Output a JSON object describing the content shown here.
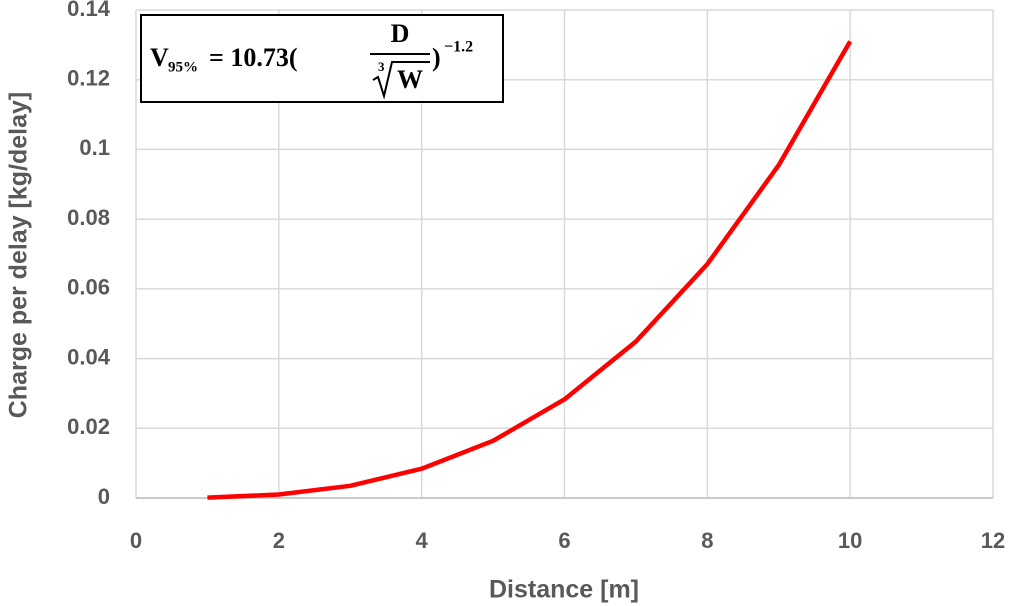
{
  "chart_data": {
    "type": "line",
    "x_label": "Distance [m]",
    "y_label": "Charge per delay [kg/delay]",
    "x": [
      1,
      2,
      3,
      4,
      5,
      6,
      7,
      8,
      9,
      10
    ],
    "series": [
      {
        "name": "Charge per delay",
        "color": "#ff0000",
        "values": [
          0.0001,
          0.001,
          0.0035,
          0.0084,
          0.0164,
          0.0283,
          0.0449,
          0.0671,
          0.0955,
          0.131
        ]
      }
    ],
    "xlim": [
      0,
      12
    ],
    "xticks": [
      0,
      2,
      4,
      6,
      8,
      10,
      12
    ],
    "ylim": [
      0,
      0.14
    ],
    "yticks": [
      0,
      0.02,
      0.04,
      0.06,
      0.08,
      0.1,
      0.12,
      0.14
    ],
    "grid": true,
    "annotation": {
      "var": "V",
      "sub": "95%",
      "mid": "= 10.73(",
      "num": "D",
      "root_index": "3",
      "den": "W",
      "close": ")",
      "exp": "−1.2"
    }
  }
}
